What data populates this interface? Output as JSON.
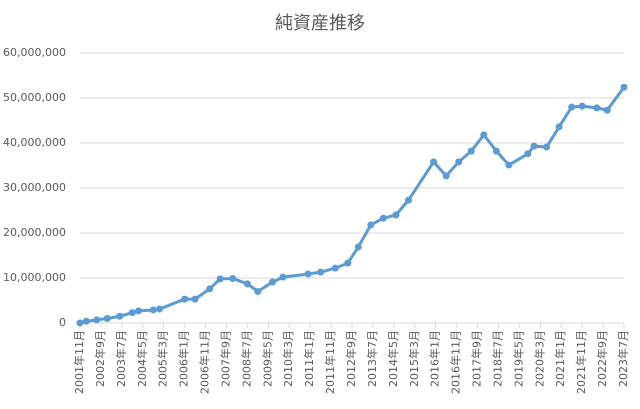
{
  "chart_data": {
    "type": "line",
    "title": "純資産推移",
    "x": [
      "2001-11",
      "2002-02",
      "2002-07",
      "2002-12",
      "2003-06",
      "2003-12",
      "2004-03",
      "2004-10",
      "2005-01",
      "2006-01",
      "2006-06",
      "2007-01",
      "2007-06",
      "2007-12",
      "2008-07",
      "2008-12",
      "2009-07",
      "2009-12",
      "2010-12",
      "2011-06",
      "2012-01",
      "2012-07",
      "2012-12",
      "2013-06",
      "2013-12",
      "2014-06",
      "2014-12",
      "2015-12",
      "2016-06",
      "2016-12",
      "2017-06",
      "2017-12",
      "2018-06",
      "2018-12",
      "2019-09",
      "2019-12",
      "2020-06",
      "2020-12",
      "2021-06",
      "2021-11",
      "2022-06",
      "2022-11",
      "2023-07"
    ],
    "series": [
      {
        "color": "#5b9bd5",
        "values": [
          0,
          400000,
          700000,
          1000000,
          1500000,
          2300000,
          2700000,
          2900000,
          3100000,
          5300000,
          5300000,
          7600000,
          9800000,
          9900000,
          8700000,
          7000000,
          9100000,
          10200000,
          10900000,
          11300000,
          12200000,
          13300000,
          16900000,
          21800000,
          23300000,
          24000000,
          27300000,
          35800000,
          32700000,
          35800000,
          38200000,
          41800000,
          38200000,
          35100000,
          37600000,
          39300000,
          39100000,
          43600000,
          48000000,
          48200000,
          47800000,
          47300000,
          52400000
        ]
      }
    ],
    "xlim": [
      "2001-11",
      "2023-07"
    ],
    "xticks": [
      {
        "value": "2001-11",
        "label": "2001年11月"
      },
      {
        "value": "2002-09",
        "label": "2002年9月"
      },
      {
        "value": "2003-07",
        "label": "2003年7月"
      },
      {
        "value": "2004-05",
        "label": "2004年5月"
      },
      {
        "value": "2005-03",
        "label": "2005年3月"
      },
      {
        "value": "2006-01",
        "label": "2006年1月"
      },
      {
        "value": "2006-11",
        "label": "2006年11月"
      },
      {
        "value": "2007-09",
        "label": "2007年9月"
      },
      {
        "value": "2008-07",
        "label": "2008年7月"
      },
      {
        "value": "2009-05",
        "label": "2009年5月"
      },
      {
        "value": "2010-03",
        "label": "2010年3月"
      },
      {
        "value": "2011-01",
        "label": "2011年1月"
      },
      {
        "value": "2011-11",
        "label": "2011年11月"
      },
      {
        "value": "2012-09",
        "label": "2012年9月"
      },
      {
        "value": "2013-07",
        "label": "2013年7月"
      },
      {
        "value": "2014-05",
        "label": "2014年5月"
      },
      {
        "value": "2015-03",
        "label": "2015年3月"
      },
      {
        "value": "2016-01",
        "label": "2016年1月"
      },
      {
        "value": "2016-11",
        "label": "2016年11月"
      },
      {
        "value": "2017-09",
        "label": "2017年9月"
      },
      {
        "value": "2018-07",
        "label": "2018年7月"
      },
      {
        "value": "2019-05",
        "label": "2019年5月"
      },
      {
        "value": "2020-03",
        "label": "2020年3月"
      },
      {
        "value": "2021-01",
        "label": "2021年1月"
      },
      {
        "value": "2021-11",
        "label": "2021年11月"
      },
      {
        "value": "2022-09",
        "label": "2022年9月"
      },
      {
        "value": "2023-07",
        "label": "2023年7月"
      }
    ],
    "ylim": [
      0,
      60000000
    ],
    "yticks": [
      0,
      {
        "value": 10000000,
        "label": "10,000,000"
      },
      {
        "value": 20000000,
        "label": "20,000,000"
      },
      {
        "value": 30000000,
        "label": "30,000,000"
      },
      {
        "value": 40000000,
        "label": "40,000,000"
      },
      {
        "value": 50000000,
        "label": "50,000,000"
      },
      {
        "value": 60000000,
        "label": "60,000,000"
      }
    ],
    "grid": true
  }
}
